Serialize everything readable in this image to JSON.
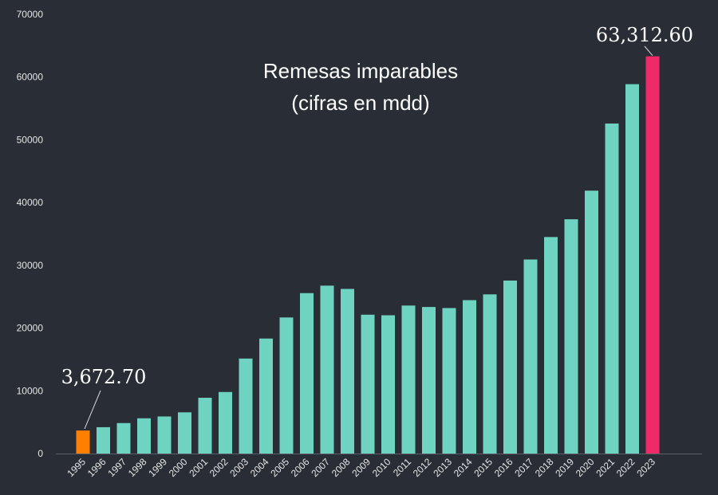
{
  "chart_data": {
    "type": "bar",
    "title_lines": [
      "Remesas imparables",
      "(cifras en mdd)"
    ],
    "categories": [
      "1995",
      "1996",
      "1997",
      "1998",
      "1999",
      "2000",
      "2001",
      "2002",
      "2003",
      "2004",
      "2005",
      "2006",
      "2007",
      "2008",
      "2009",
      "2010",
      "2011",
      "2012",
      "2013",
      "2014",
      "2015",
      "2016",
      "2017",
      "2018",
      "2019",
      "2020",
      "2021",
      "2022",
      "2023"
    ],
    "values": [
      3672.7,
      4200,
      4860,
      5620,
      5910,
      6570,
      8890,
      9810,
      15140,
      18330,
      21690,
      25570,
      26760,
      26240,
      22130,
      22040,
      23590,
      23360,
      23190,
      24450,
      25370,
      27570,
      30930,
      34510,
      37340,
      41900,
      52600,
      58870,
      63312.6
    ],
    "ylim": [
      0,
      70000
    ],
    "yticks": [
      0,
      10000,
      20000,
      30000,
      40000,
      50000,
      60000,
      70000
    ],
    "xlabel": "",
    "ylabel": "",
    "grid": false,
    "colors": {
      "default": "#6fd3c1",
      "first": "#ff8000",
      "last": "#ee2a6b",
      "background": "#292d36",
      "text": "#ffffff"
    },
    "annotations": [
      {
        "category": "1995",
        "text": "3,672.70"
      },
      {
        "category": "2023",
        "text": "63,312.60"
      }
    ]
  }
}
